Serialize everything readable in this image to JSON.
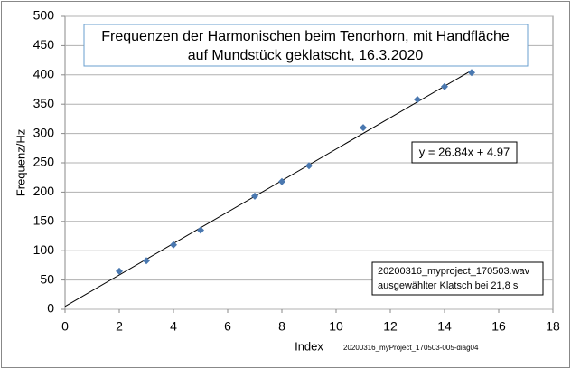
{
  "chart_data": {
    "type": "scatter",
    "title": [
      "Frequenzen der Harmonischen beim Tenorhorn, mit Handfläche",
      "auf Mundstück geklatscht,  16.3.2020"
    ],
    "x_label": "Index",
    "y_label": "Frequenz/Hz",
    "footnote": "20200316_myProject_170503-005-diag04",
    "info": [
      "20200316_myproject_170503.wav",
      "ausgewählter Klatsch bei 21,8 s"
    ],
    "x": [
      2,
      3,
      4,
      5,
      7,
      8,
      9,
      11,
      13,
      14,
      15
    ],
    "values": [
      65,
      83,
      110,
      135,
      193,
      218,
      245,
      310,
      358,
      380,
      404
    ],
    "color": "#4a78b0",
    "trendline": {
      "slope": 26.84,
      "intercept": 4.97,
      "label": "y = 26.84x + 4.97"
    },
    "xlim": [
      0,
      18
    ],
    "xticks": [
      0,
      2,
      4,
      6,
      8,
      10,
      12,
      14,
      16,
      18
    ],
    "ylim": [
      0,
      500
    ],
    "yticks": [
      0,
      50,
      100,
      150,
      200,
      250,
      300,
      350,
      400,
      450,
      500
    ],
    "grid": true
  }
}
